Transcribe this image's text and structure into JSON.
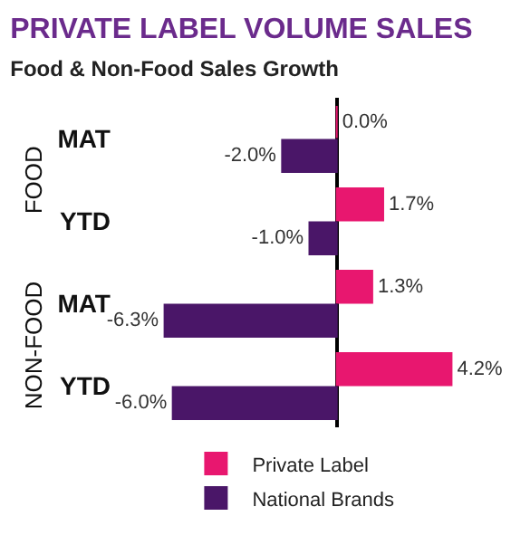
{
  "chart_data": {
    "type": "bar",
    "orientation": "horizontal",
    "title": "PRIVATE LABEL VOLUME SALES",
    "subtitle": "Food & Non-Food Sales Growth",
    "categories": [
      "MAT",
      "YTD",
      "MAT",
      "YTD"
    ],
    "tick_labels": "y",
    "legend": "bottom",
    "annotations": [
      "FOOD",
      "NON-FOOD"
    ],
    "series": [
      {
        "name": "Private Label",
        "color": "#e8176f",
        "values": [
          0.0,
          1.7,
          1.3,
          4.2
        ],
        "value_labels": [
          "0.0%",
          "1.7%",
          "1.3%",
          "4.2%"
        ]
      },
      {
        "name": "National Brands",
        "color": "#4a1668",
        "values": [
          -2.0,
          -1.0,
          -6.3,
          -6.0
        ],
        "value_labels": [
          "-2.0%",
          "-1.0%",
          "-6.3%",
          "-6.0%"
        ]
      }
    ]
  }
}
